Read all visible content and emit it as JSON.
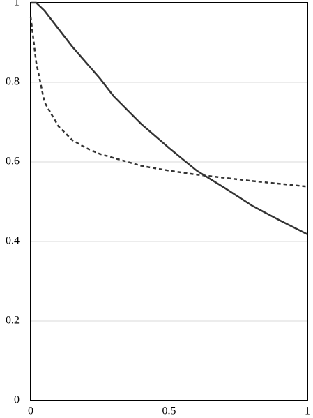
{
  "chart_data": {
    "type": "line",
    "x": [
      0,
      0.02,
      0.05,
      0.1,
      0.15,
      0.2,
      0.25,
      0.3,
      0.4,
      0.5,
      0.6,
      0.7,
      0.8,
      0.9,
      1
    ],
    "series": [
      {
        "color": "#333333",
        "style": "solid",
        "values": [
          1,
          1,
          0.98,
          0.935,
          0.89,
          0.85,
          0.81,
          0.765,
          0.695,
          0.635,
          0.578,
          0.535,
          0.49,
          0.453,
          0.418
        ]
      },
      {
        "color": "#333333",
        "style": "dashed",
        "values": [
          0.965,
          0.85,
          0.75,
          0.69,
          0.655,
          0.635,
          0.62,
          0.61,
          0.59,
          0.578,
          0.568,
          0.56,
          0.552,
          0.545,
          0.538
        ]
      }
    ],
    "xlim": [
      0,
      1
    ],
    "xticks": [
      0,
      0.5,
      1
    ],
    "ylim": [
      0,
      1
    ],
    "yticks": [
      0,
      0.2,
      0.4,
      0.6,
      0.8,
      1
    ],
    "grid": true
  }
}
